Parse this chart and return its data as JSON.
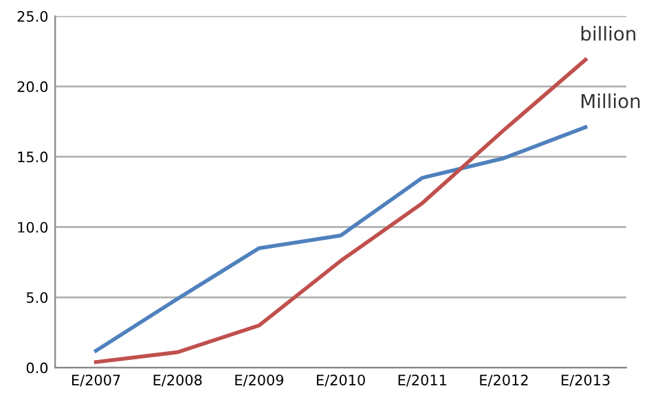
{
  "chart_data": {
    "type": "line",
    "categories": [
      "E/2007",
      "E/2008",
      "E/2009",
      "E/2010",
      "E/2011",
      "E/2012",
      "E/2013"
    ],
    "series": [
      {
        "name": "Million",
        "color": "#4f81bd",
        "values": [
          1.2,
          4.9,
          8.5,
          9.4,
          13.5,
          14.9,
          17.1
        ]
      },
      {
        "name": "billion",
        "color": "#c0504d",
        "values": [
          0.4,
          1.1,
          3.0,
          7.6,
          11.7,
          16.9,
          21.9
        ]
      }
    ],
    "ylim": [
      0,
      25
    ],
    "yticks": [
      {
        "value": 0,
        "label": "0.0"
      },
      {
        "value": 5,
        "label": "5.0"
      },
      {
        "value": 10,
        "label": "10.0"
      },
      {
        "value": 15,
        "label": "15.0"
      },
      {
        "value": 20,
        "label": "20.0"
      },
      {
        "value": 25,
        "label": "25.0"
      }
    ],
    "grid": "y",
    "legend": false,
    "marker": "none",
    "line_style": "solid"
  }
}
